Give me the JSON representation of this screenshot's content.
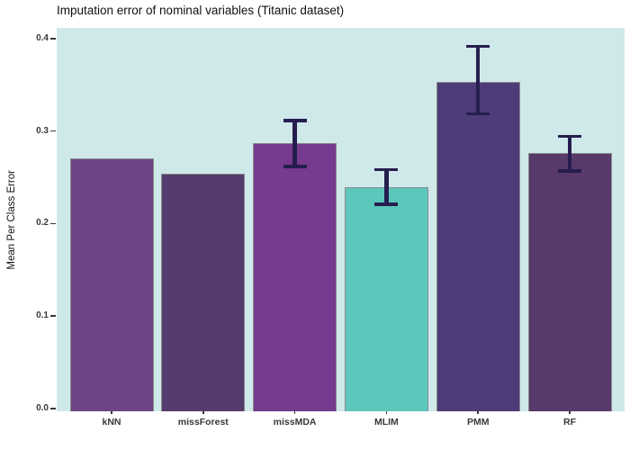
{
  "chart_data": {
    "type": "bar",
    "title": "Imputation error of nominal variables (Titanic dataset)",
    "ylabel": "Mean Per Class Error",
    "xlabel": "",
    "categories": [
      "kNN",
      "missForest",
      "missMDA",
      "MLIM",
      "PMM",
      "RF"
    ],
    "values": [
      0.27,
      0.254,
      0.287,
      0.239,
      0.353,
      0.276
    ],
    "error_low": [
      null,
      null,
      0.26,
      0.219,
      0.317,
      0.255
    ],
    "error_high": [
      null,
      null,
      0.313,
      0.26,
      0.393,
      0.296
    ],
    "bar_colors": [
      "#6b4584",
      "#543c6e",
      "#763a8e",
      "#5cc7bb",
      "#4e3c78",
      "#573a6a"
    ],
    "bar_border_color": "#8a8a8a",
    "errorbar_color": "#261d4f",
    "panel_bg": "#cfe8ea",
    "outer_bg": "#ffffff",
    "ylim": [
      0,
      0.413
    ],
    "yticks": [
      0,
      0.1,
      0.2,
      0.3,
      0.4
    ],
    "ytick_labels": [
      "0.0",
      "0.1",
      "0.2",
      "0.3",
      "0.4"
    ],
    "grid": "off",
    "legend": "none"
  }
}
